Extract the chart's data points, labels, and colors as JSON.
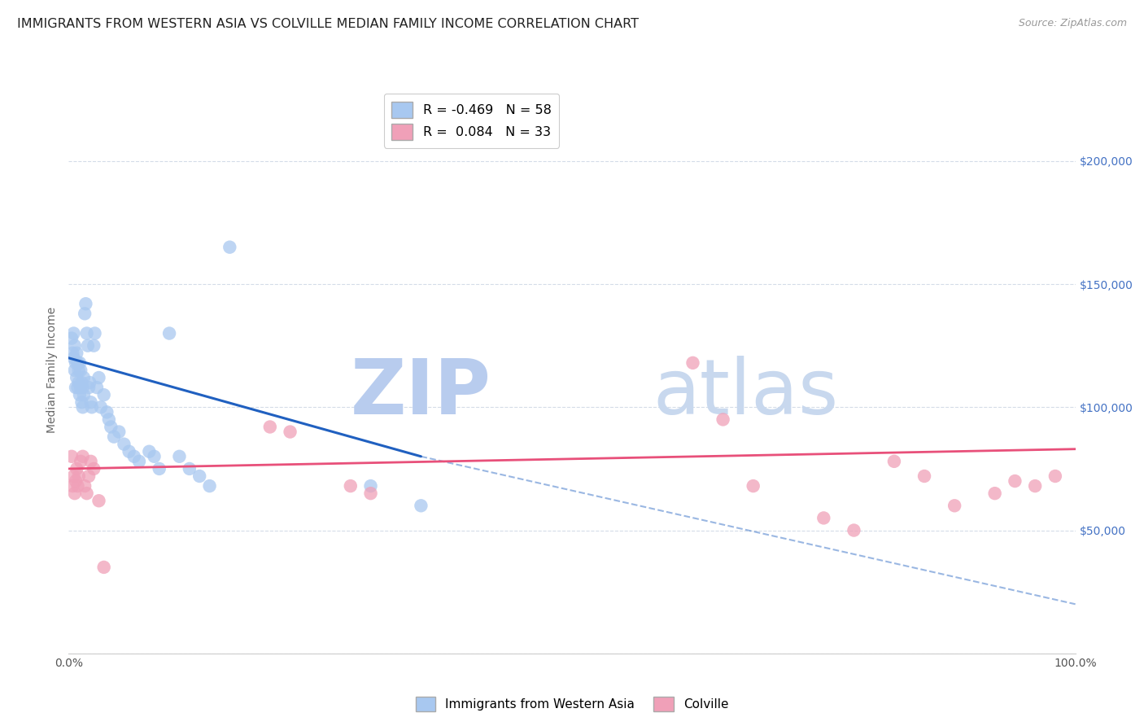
{
  "title": "IMMIGRANTS FROM WESTERN ASIA VS COLVILLE MEDIAN FAMILY INCOME CORRELATION CHART",
  "source": "Source: ZipAtlas.com",
  "ylabel": "Median Family Income",
  "xlim": [
    0.0,
    1.0
  ],
  "ylim": [
    0,
    230000
  ],
  "yticks": [
    0,
    50000,
    100000,
    150000,
    200000
  ],
  "ytick_labels": [
    "",
    "$50,000",
    "$100,000",
    "$150,000",
    "$200,000"
  ],
  "xtick_labels": [
    "0.0%",
    "",
    "",
    "",
    "",
    "",
    "",
    "",
    "",
    "",
    "100.0%"
  ],
  "xticks": [
    0.0,
    0.1,
    0.2,
    0.3,
    0.4,
    0.5,
    0.6,
    0.7,
    0.8,
    0.9,
    1.0
  ],
  "blue_R": -0.469,
  "blue_N": 58,
  "pink_R": 0.084,
  "pink_N": 33,
  "blue_color": "#a8c8f0",
  "pink_color": "#f0a0b8",
  "blue_line_color": "#2060c0",
  "pink_line_color": "#e8507a",
  "watermark_zip": "ZIP",
  "watermark_atlas": "atlas",
  "watermark_color_zip": "#b8ccee",
  "watermark_color_atlas": "#c8d8ee",
  "legend_label_blue": "Immigrants from Western Asia",
  "legend_label_pink": "Colville",
  "blue_scatter_x": [
    0.003,
    0.004,
    0.005,
    0.005,
    0.006,
    0.006,
    0.007,
    0.007,
    0.008,
    0.008,
    0.009,
    0.009,
    0.01,
    0.01,
    0.011,
    0.011,
    0.012,
    0.012,
    0.013,
    0.013,
    0.014,
    0.014,
    0.015,
    0.015,
    0.016,
    0.017,
    0.018,
    0.019,
    0.02,
    0.021,
    0.022,
    0.023,
    0.025,
    0.026,
    0.028,
    0.03,
    0.032,
    0.035,
    0.038,
    0.04,
    0.042,
    0.045,
    0.05,
    0.055,
    0.06,
    0.065,
    0.07,
    0.08,
    0.085,
    0.09,
    0.1,
    0.11,
    0.12,
    0.13,
    0.14,
    0.16,
    0.3,
    0.35
  ],
  "blue_scatter_y": [
    128000,
    122000,
    120000,
    130000,
    115000,
    125000,
    118000,
    108000,
    112000,
    122000,
    118000,
    108000,
    110000,
    115000,
    105000,
    118000,
    108000,
    115000,
    102000,
    110000,
    100000,
    108000,
    105000,
    112000,
    138000,
    142000,
    130000,
    125000,
    108000,
    110000,
    102000,
    100000,
    125000,
    130000,
    108000,
    112000,
    100000,
    105000,
    98000,
    95000,
    92000,
    88000,
    90000,
    85000,
    82000,
    80000,
    78000,
    82000,
    80000,
    75000,
    130000,
    80000,
    75000,
    72000,
    68000,
    165000,
    68000,
    60000
  ],
  "pink_scatter_x": [
    0.003,
    0.004,
    0.005,
    0.006,
    0.007,
    0.008,
    0.009,
    0.01,
    0.012,
    0.014,
    0.016,
    0.018,
    0.02,
    0.022,
    0.025,
    0.03,
    0.035,
    0.2,
    0.22,
    0.28,
    0.3,
    0.62,
    0.65,
    0.68,
    0.75,
    0.78,
    0.82,
    0.85,
    0.88,
    0.92,
    0.94,
    0.96,
    0.98
  ],
  "pink_scatter_y": [
    80000,
    68000,
    72000,
    65000,
    70000,
    75000,
    68000,
    72000,
    78000,
    80000,
    68000,
    65000,
    72000,
    78000,
    75000,
    62000,
    35000,
    92000,
    90000,
    68000,
    65000,
    118000,
    95000,
    68000,
    55000,
    50000,
    78000,
    72000,
    60000,
    65000,
    70000,
    68000,
    72000
  ],
  "blue_line_x0": 0.0,
  "blue_line_y0": 120000,
  "blue_line_x1": 0.35,
  "blue_line_y1": 80000,
  "blue_line_dash_x1": 1.0,
  "blue_line_dash_y1": 20000,
  "pink_line_x0": 0.0,
  "pink_line_y0": 75000,
  "pink_line_x1": 1.0,
  "pink_line_y1": 83000,
  "background_color": "#ffffff",
  "grid_color": "#d4dce8",
  "title_fontsize": 11.5,
  "axis_label_fontsize": 10,
  "tick_fontsize": 10,
  "right_ytick_color": "#4472c4"
}
